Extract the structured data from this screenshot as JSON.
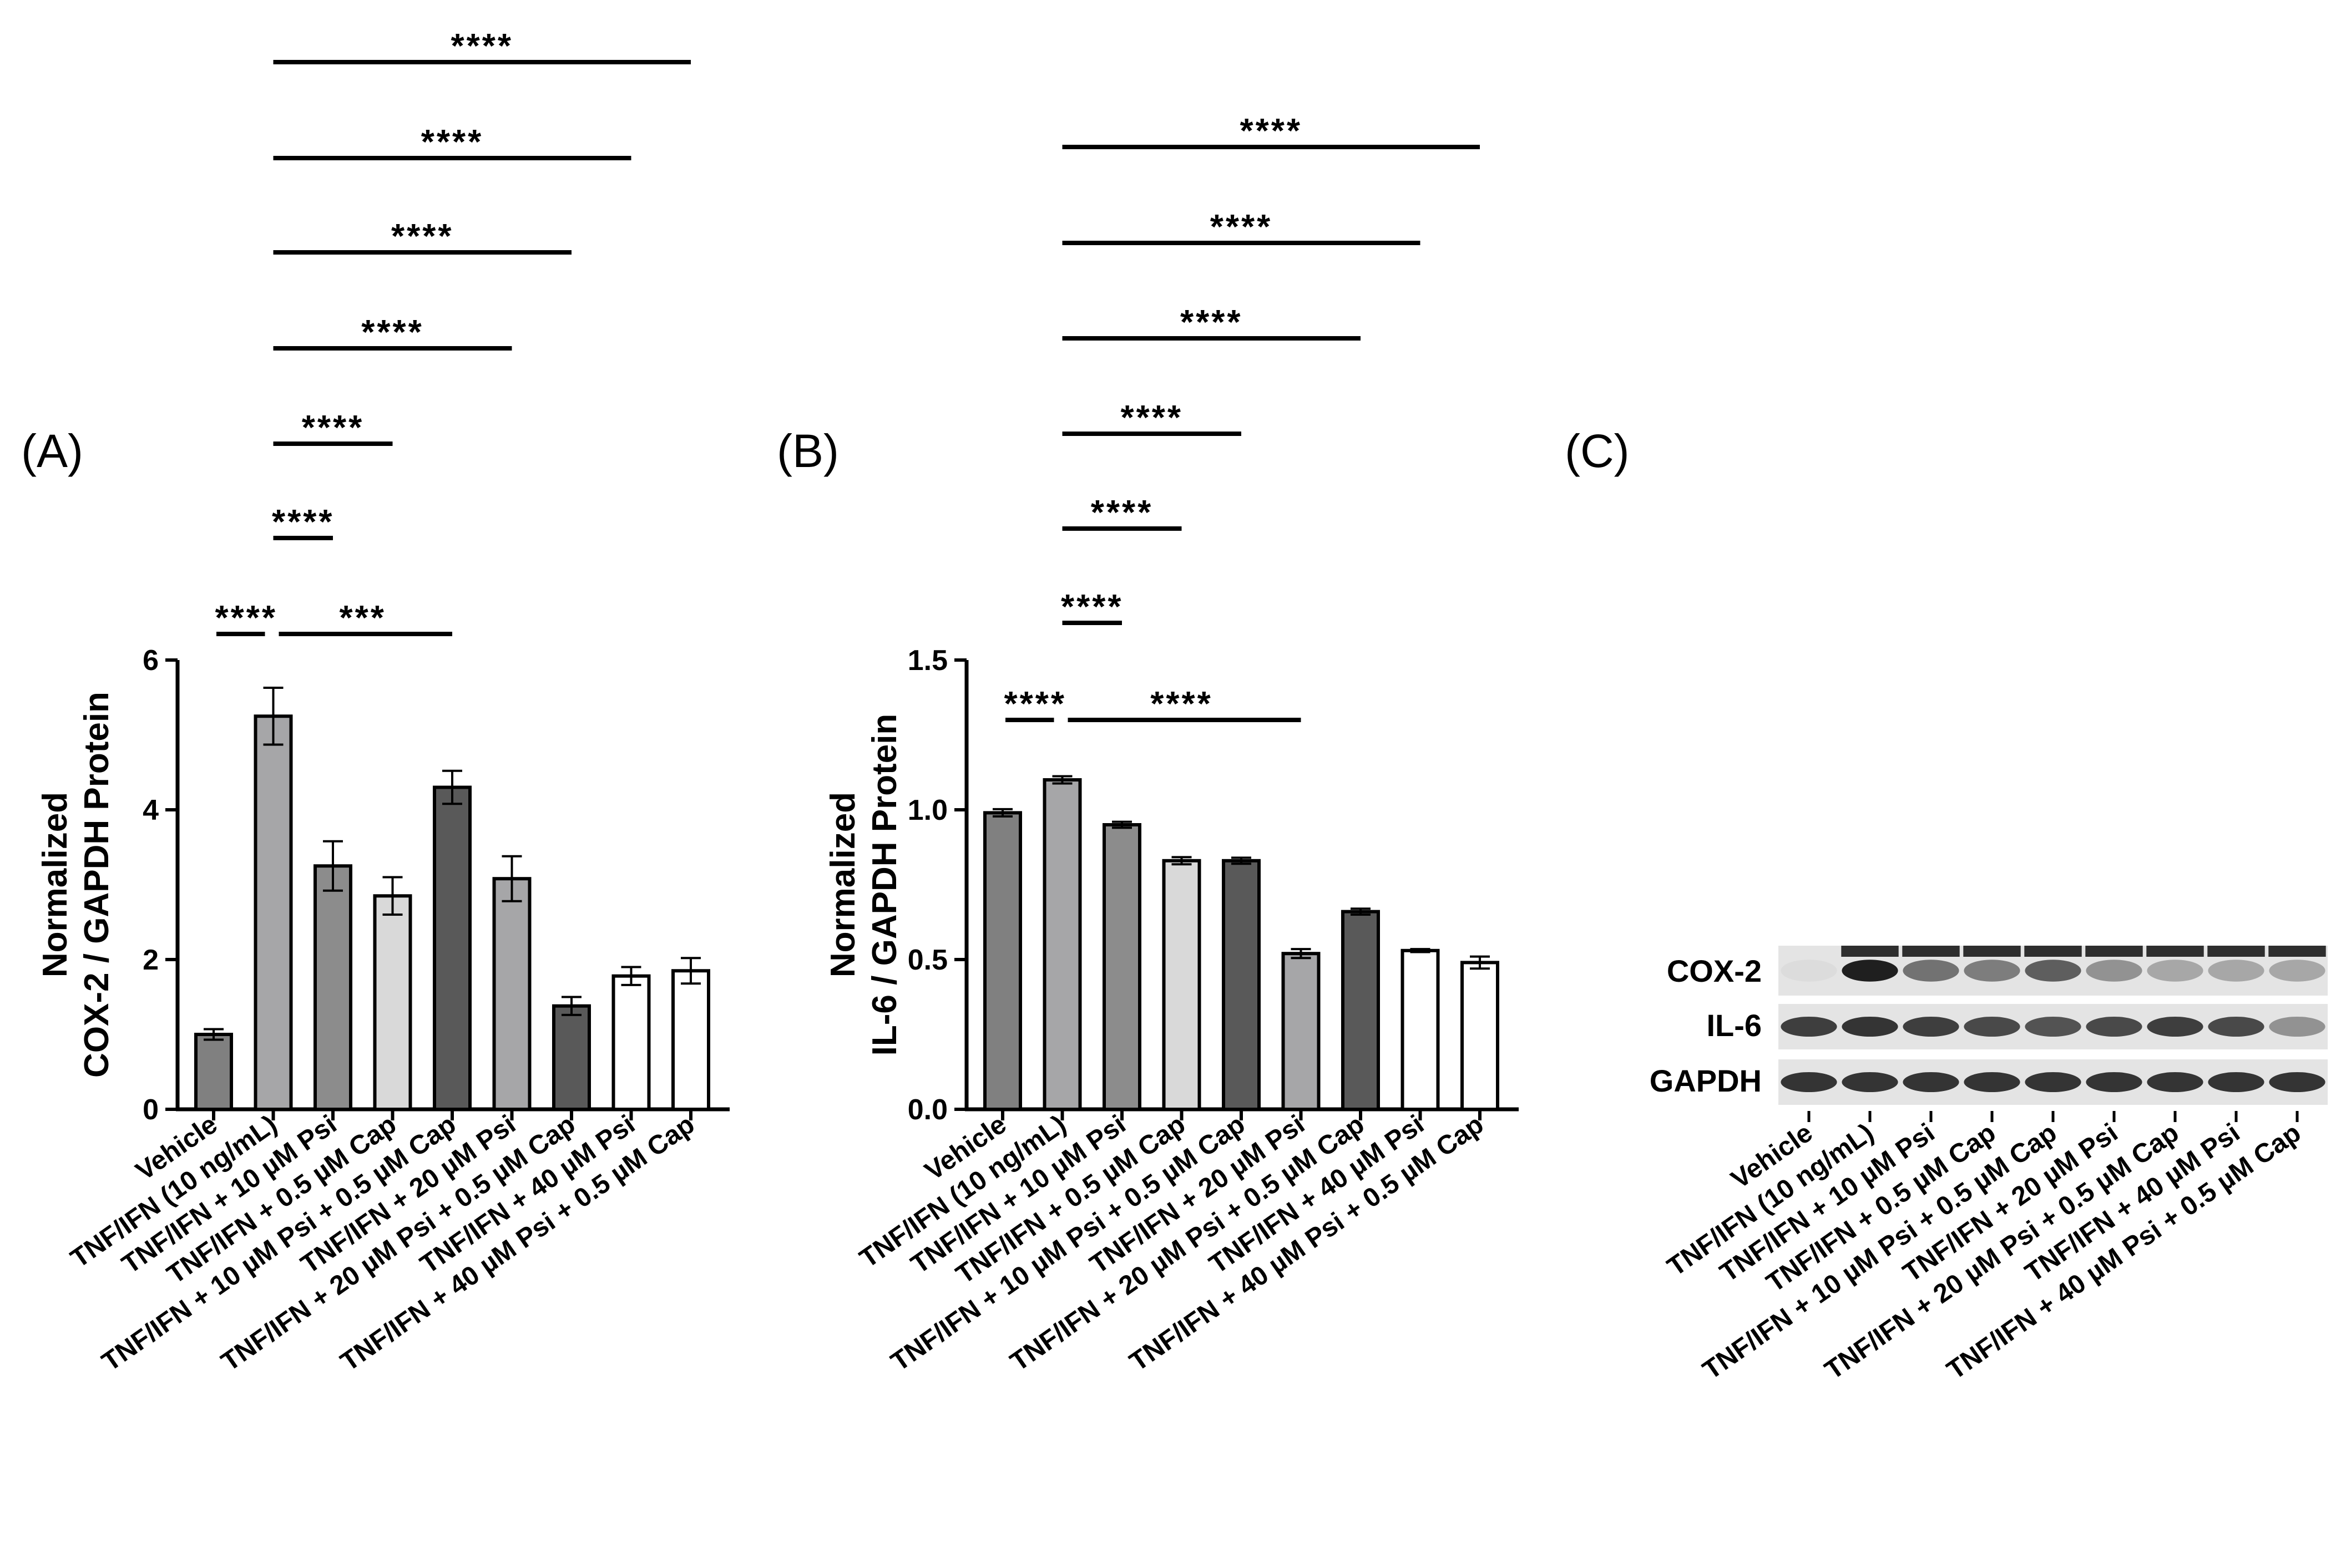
{
  "figure": {
    "panels": [
      {
        "id": "A",
        "label": "(A)"
      },
      {
        "id": "B",
        "label": "(B)"
      },
      {
        "id": "C",
        "label": "(C)"
      }
    ]
  },
  "categories": [
    "Vehicle",
    "TNF/IFN (10 ng/mL)",
    "TNF/IFN + 10 µM Psi",
    "TNF/IFN + 0.5 µM Cap",
    "TNF/IFN + 10 µM Psi + 0.5 µM Cap",
    "TNF/IFN + 20 µM Psi",
    "TNF/IFN + 20 µM Psi + 0.5 µM Cap",
    "TNF/IFN + 40 µM Psi",
    "TNF/IFN + 40 µM Psi + 0.5 µM Cap"
  ],
  "colors": {
    "bars": [
      "#808080",
      "#a6a6a8",
      "#8c8c8c",
      "#d9d9d9",
      "#595959",
      "#a6a6a8",
      "#595959",
      "#ffffff",
      "#ffffff"
    ],
    "stroke": "#000000"
  },
  "chart_data": [
    {
      "panel": "A",
      "type": "bar",
      "ylabel_line1": "Normalized",
      "ylabel_line2": "COX-2 / GAPDH Protein",
      "ylim": [
        0,
        6
      ],
      "yticks": [
        "0",
        "2",
        "4",
        "6"
      ],
      "ytick_values": [
        0,
        2,
        4,
        6
      ],
      "values": [
        1.0,
        5.25,
        3.25,
        2.85,
        4.3,
        3.08,
        1.38,
        1.78,
        1.85
      ],
      "errors": [
        0.07,
        0.38,
        0.33,
        0.25,
        0.22,
        0.3,
        0.12,
        0.12,
        0.17
      ],
      "significance": [
        {
          "from": 0,
          "to": 1,
          "label": "****"
        },
        {
          "from": 1,
          "to": 4,
          "label": "***"
        },
        {
          "from": 1,
          "to": 2,
          "label": "****"
        },
        {
          "from": 1,
          "to": 3,
          "label": "****"
        },
        {
          "from": 1,
          "to": 5,
          "label": "****"
        },
        {
          "from": 1,
          "to": 6,
          "label": "****"
        },
        {
          "from": 1,
          "to": 7,
          "label": "****"
        },
        {
          "from": 1,
          "to": 8,
          "label": "****"
        }
      ]
    },
    {
      "panel": "B",
      "type": "bar",
      "ylabel_line1": "Normalized",
      "ylabel_line2": "IL-6 / GAPDH Protein",
      "ylim": [
        0,
        1.5
      ],
      "yticks": [
        "0.0",
        "0.5",
        "1.0",
        "1.5"
      ],
      "ytick_values": [
        0,
        0.5,
        1.0,
        1.5
      ],
      "values": [
        0.99,
        1.1,
        0.95,
        0.83,
        0.83,
        0.52,
        0.66,
        0.53,
        0.49
      ],
      "errors": [
        0.012,
        0.012,
        0.01,
        0.012,
        0.01,
        0.015,
        0.01,
        0.005,
        0.02
      ],
      "significance": [
        {
          "from": 0,
          "to": 1,
          "label": "****"
        },
        {
          "from": 1,
          "to": 5,
          "label": "****"
        },
        {
          "from": 1,
          "to": 2,
          "label": "****"
        },
        {
          "from": 1,
          "to": 3,
          "label": "****"
        },
        {
          "from": 1,
          "to": 4,
          "label": "****"
        },
        {
          "from": 1,
          "to": 6,
          "label": "****"
        },
        {
          "from": 1,
          "to": 7,
          "label": "****"
        },
        {
          "from": 1,
          "to": 8,
          "label": "****"
        }
      ]
    }
  ],
  "blot": {
    "rows": [
      "COX-2",
      "IL-6",
      "GAPDH"
    ],
    "cox2_intensity": [
      0.05,
      0.95,
      0.55,
      0.5,
      0.65,
      0.4,
      0.3,
      0.3,
      0.3
    ],
    "il6_intensity": [
      0.8,
      0.85,
      0.8,
      0.75,
      0.7,
      0.75,
      0.8,
      0.75,
      0.4
    ],
    "gapdh_intensity": [
      0.85,
      0.85,
      0.85,
      0.85,
      0.85,
      0.85,
      0.85,
      0.85,
      0.85
    ]
  }
}
